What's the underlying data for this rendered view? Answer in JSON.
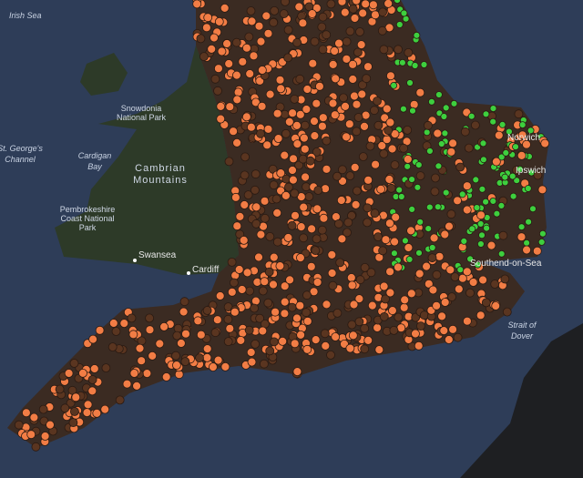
{
  "labels": {
    "irish_sea": "Irish Sea",
    "st_georges": [
      "St. George's",
      "Channel"
    ],
    "cardigan_bay": [
      "Cardigan",
      "Bay"
    ],
    "snowdonia": [
      "Snowdonia",
      "National Park"
    ],
    "cambrian": [
      "Cambrian",
      "Mountains"
    ],
    "pembrokeshire": [
      "Pembrokeshire",
      "Coast National",
      "Park"
    ],
    "swansea": "Swansea",
    "cardiff": "Cardiff",
    "southend": "Southend-on-Sea",
    "strait": [
      "Strait of",
      "Dover"
    ],
    "norwich": "Norwich",
    "ipswich": "Ipswich"
  }
}
